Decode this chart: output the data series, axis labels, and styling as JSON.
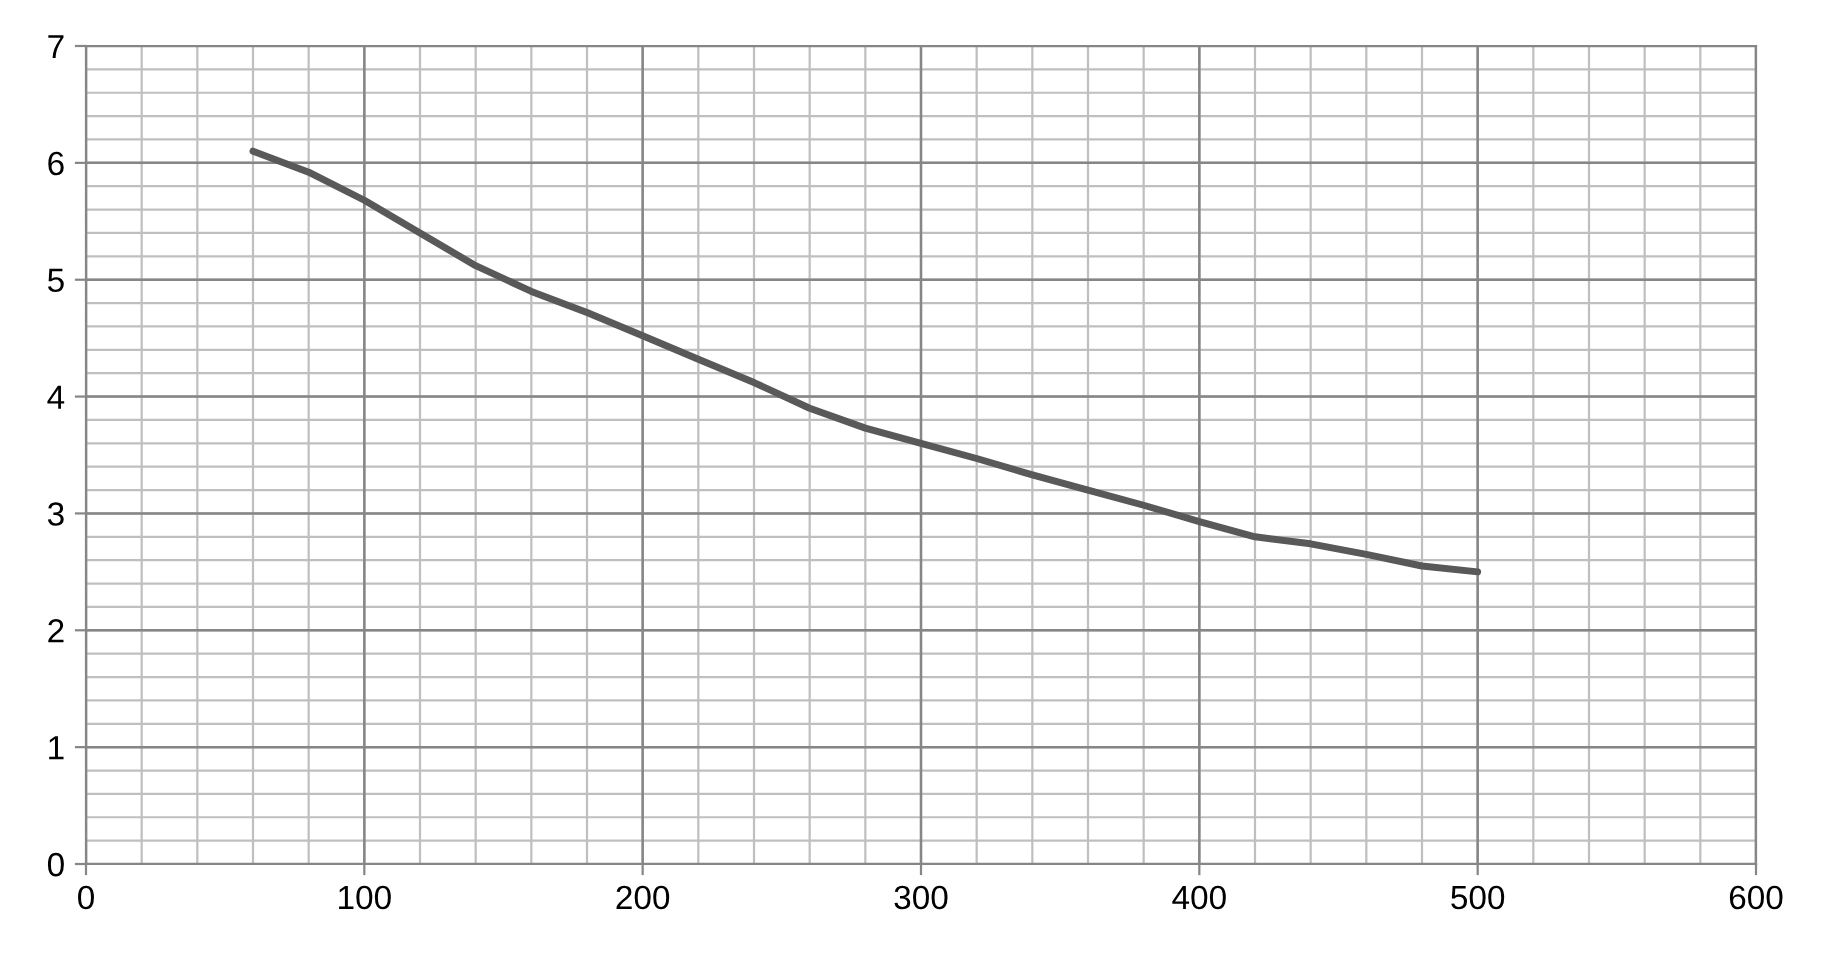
{
  "chart_data": {
    "type": "line",
    "x": [
      60,
      80,
      100,
      120,
      140,
      160,
      180,
      200,
      220,
      240,
      260,
      280,
      300,
      320,
      340,
      360,
      380,
      400,
      420,
      440,
      460,
      480,
      500
    ],
    "series": [
      {
        "color": "#595959",
        "values": [
          6.1,
          5.92,
          5.68,
          5.4,
          5.12,
          4.9,
          4.72,
          4.52,
          4.32,
          4.12,
          3.9,
          3.73,
          3.6,
          3.47,
          3.33,
          3.2,
          3.07,
          2.93,
          2.8,
          2.74,
          2.65,
          2.55,
          2.5
        ]
      }
    ],
    "xlim": [
      0,
      600
    ],
    "xticks": [
      0,
      100,
      200,
      300,
      400,
      500,
      600
    ],
    "ylim": [
      0,
      7
    ],
    "yticks": [
      0,
      1,
      2,
      3,
      4,
      5,
      6,
      7
    ],
    "grid": true,
    "marker": "none",
    "line_style": "solid",
    "legend": false
  }
}
